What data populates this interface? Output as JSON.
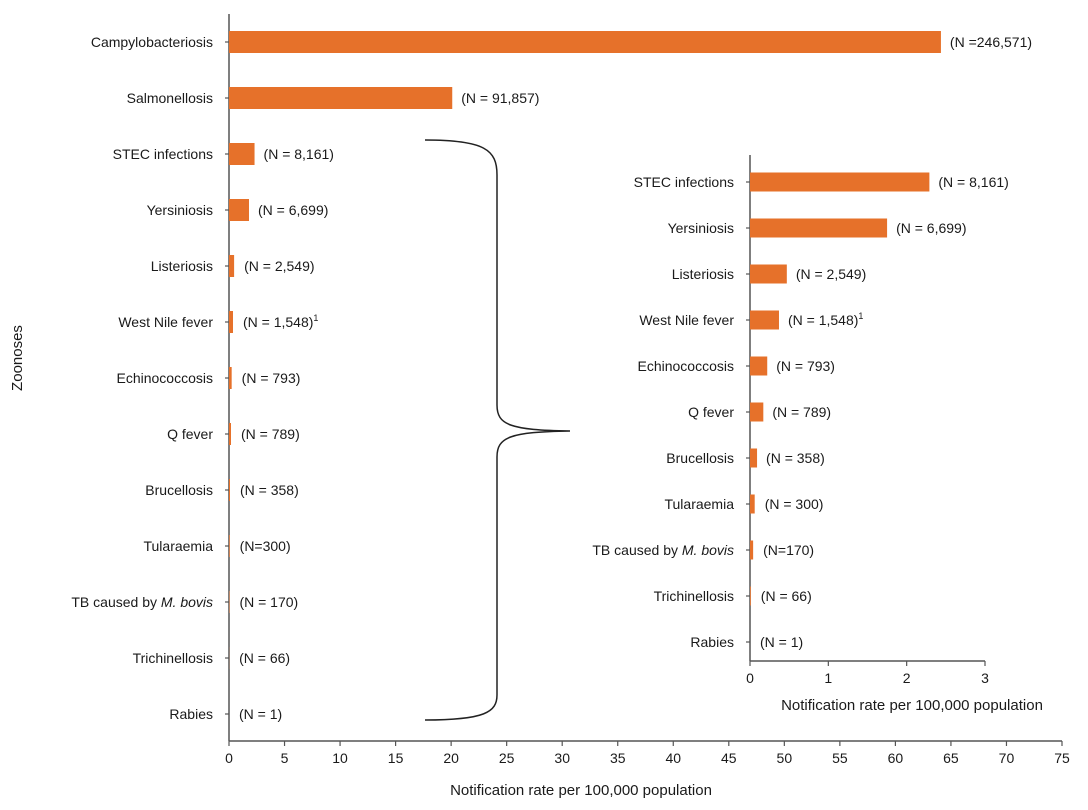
{
  "chart_data": [
    {
      "type": "bar",
      "orientation": "horizontal",
      "ylabel": "Zoonoses",
      "xlabel": "Notification rate per 100,000 population",
      "xlim": [
        0,
        75
      ],
      "xticks": [
        "0",
        "5",
        "10",
        "15",
        "20",
        "25",
        "30",
        "35",
        "40",
        "45",
        "50",
        "55",
        "60",
        "65",
        "70",
        "75"
      ],
      "bar_color": "#E6712A",
      "categories": [
        "Campylobacteriosis",
        "Salmonellosis",
        "STEC infections",
        "Yersiniosis",
        "Listeriosis",
        "West Nile fever",
        "Echinococcosis",
        "Q fever",
        "Brucellosis",
        "Tularaemia",
        "TB caused by M. bovis",
        "Trichinellosis",
        "Rabies"
      ],
      "category_labels": [
        {
          "text": "Campylobacteriosis"
        },
        {
          "text": "Salmonellosis"
        },
        {
          "text": "STEC infections"
        },
        {
          "text": "Yersiniosis"
        },
        {
          "text": "Listeriosis"
        },
        {
          "text": "West Nile fever"
        },
        {
          "text": "Echinococcosis"
        },
        {
          "text": "Q fever"
        },
        {
          "text": "Brucellosis"
        },
        {
          "text": "Tularaemia"
        },
        {
          "text": "TB caused by ",
          "italic": "M. bovis"
        },
        {
          "text": "Trichinellosis"
        },
        {
          "text": "Rabies"
        }
      ],
      "values": [
        64.1,
        20.1,
        2.3,
        1.8,
        0.46,
        0.36,
        0.24,
        0.18,
        0.09,
        0.06,
        0.04,
        0.01,
        0.0
      ],
      "annotations": [
        {
          "text": "(N =246,571)"
        },
        {
          "text": "(N = 91,857)"
        },
        {
          "text": "(N = 8,161)"
        },
        {
          "text": "(N = 6,699)"
        },
        {
          "text": "(N = 2,549)"
        },
        {
          "text": "(N = 1,548)",
          "sup": "1"
        },
        {
          "text": "(N = 793)"
        },
        {
          "text": "(N = 789)"
        },
        {
          "text": "(N = 358)"
        },
        {
          "text": "(N=300)"
        },
        {
          "text": "(N = 170)"
        },
        {
          "text": "(N = 66)"
        },
        {
          "text": "(N = 1)"
        }
      ]
    },
    {
      "type": "bar",
      "orientation": "horizontal",
      "inset": true,
      "xlabel": "Notification rate per 100,000 population",
      "xlim": [
        0,
        3
      ],
      "xticks": [
        "0",
        "1",
        "2",
        "3"
      ],
      "bar_color": "#E6712A",
      "categories": [
        "STEC infections",
        "Yersiniosis",
        "Listeriosis",
        "West Nile fever",
        "Echinococcosis",
        "Q fever",
        "Brucellosis",
        "Tularaemia",
        "TB caused by M. bovis",
        "Trichinellosis",
        "Rabies"
      ],
      "category_labels": [
        {
          "text": "STEC infections"
        },
        {
          "text": "Yersiniosis"
        },
        {
          "text": "Listeriosis"
        },
        {
          "text": "West Nile fever"
        },
        {
          "text": "Echinococcosis"
        },
        {
          "text": "Q fever"
        },
        {
          "text": "Brucellosis"
        },
        {
          "text": "Tularaemia"
        },
        {
          "text": "TB caused by ",
          "italic": "M. bovis"
        },
        {
          "text": "Trichinellosis"
        },
        {
          "text": "Rabies"
        }
      ],
      "values": [
        2.29,
        1.75,
        0.47,
        0.37,
        0.22,
        0.17,
        0.09,
        0.06,
        0.04,
        0.01,
        0.0
      ],
      "annotations": [
        {
          "text": "(N = 8,161)"
        },
        {
          "text": "(N = 6,699)"
        },
        {
          "text": "(N = 2,549)"
        },
        {
          "text": "(N = 1,548)",
          "sup": "1"
        },
        {
          "text": "(N = 793)"
        },
        {
          "text": "(N = 789)"
        },
        {
          "text": "(N = 358)"
        },
        {
          "text": "(N = 300)"
        },
        {
          "text": "(N=170)"
        },
        {
          "text": "(N = 66)"
        },
        {
          "text": "(N = 1)"
        }
      ]
    }
  ]
}
